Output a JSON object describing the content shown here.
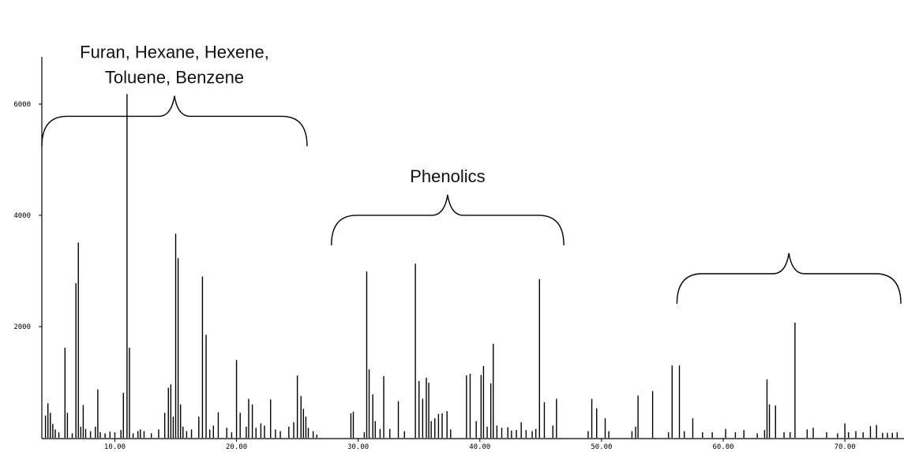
{
  "chart_data": {
    "type": "bar",
    "title": "",
    "xlabel": "",
    "ylabel": "",
    "xlim": [
      4.0,
      74.6
    ],
    "ylim": [
      0,
      6850
    ],
    "grid": false,
    "x_ticks": [
      {
        "value": 10,
        "label": "10.00"
      },
      {
        "value": 20,
        "label": "20.00"
      },
      {
        "value": 30,
        "label": "30.00"
      },
      {
        "value": 40,
        "label": "40.00"
      },
      {
        "value": 50,
        "label": "50.00"
      },
      {
        "value": 60,
        "label": "60.00"
      },
      {
        "value": 70,
        "label": "70.00"
      }
    ],
    "y_ticks": [
      {
        "value": 2000,
        "label": "2000"
      },
      {
        "value": 4000,
        "label": "4000"
      },
      {
        "value": 6000,
        "label": "6000"
      }
    ],
    "annotations": [
      {
        "lines": [
          "Furan, Hexane, Hexene,",
          "Toluene, Benzene"
        ],
        "x_range": [
          4.0,
          25.8
        ],
        "brace_y": 5780
      },
      {
        "lines": [
          "Phenolics"
        ],
        "x_range": [
          27.8,
          46.9
        ],
        "brace_y": 4000
      },
      {
        "lines": [
          ""
        ],
        "x_range": [
          56.2,
          74.6
        ],
        "brace_y": 2950
      }
    ],
    "series": [
      {
        "x": [
          4.3,
          4.5,
          4.7,
          4.9,
          5.1,
          5.4,
          5.9,
          6.1,
          6.5,
          6.8,
          7.0,
          7.2,
          7.4,
          7.6,
          8.0,
          8.4,
          8.6,
          8.8,
          9.2,
          9.6,
          10.0,
          10.5,
          10.7,
          11.0,
          11.2,
          11.5,
          11.9,
          12.1,
          12.4,
          13.0,
          13.6,
          14.1,
          14.4,
          14.6,
          14.8,
          15.0,
          15.2,
          15.4,
          15.6,
          15.9,
          16.3,
          16.9,
          17.2,
          17.5,
          17.8,
          18.1,
          18.5,
          19.2,
          19.6,
          20.0,
          20.3,
          20.8,
          21.0,
          21.3,
          21.6,
          22.0,
          22.3,
          22.8,
          23.2,
          23.6,
          24.3,
          24.7,
          25.0,
          25.3,
          25.5,
          25.7,
          25.9,
          26.3,
          26.6,
          29.4,
          29.6,
          30.5,
          30.7,
          30.9,
          31.2,
          31.4,
          31.8,
          32.1,
          32.6,
          33.3,
          33.8,
          34.7,
          35.0,
          35.3,
          35.6,
          35.8,
          36.0,
          36.3,
          36.6,
          36.9,
          37.3,
          37.6,
          38.9,
          39.2,
          39.7,
          40.1,
          40.3,
          40.6,
          40.9,
          41.1,
          41.4,
          41.8,
          42.3,
          42.6,
          43.0,
          43.4,
          43.8,
          44.3,
          44.6,
          44.9,
          45.3,
          46.0,
          46.3,
          48.9,
          49.2,
          49.6,
          50.3,
          50.6,
          52.5,
          52.8,
          53.0,
          54.2,
          55.5,
          55.8,
          56.4,
          56.8,
          57.5,
          58.3,
          59.1,
          60.2,
          61.0,
          61.7,
          62.8,
          63.4,
          63.6,
          63.8,
          64.3,
          65.0,
          65.5,
          65.9,
          66.9,
          67.4,
          68.5,
          69.4,
          70.0,
          70.3,
          70.9,
          71.5,
          72.1,
          72.6,
          73.1,
          73.5,
          73.9,
          74.3
        ],
        "values": [
          400,
          620,
          450,
          250,
          150,
          100,
          1620,
          450,
          80,
          2780,
          3510,
          200,
          590,
          160,
          120,
          200,
          870,
          100,
          80,
          110,
          100,
          140,
          810,
          6180,
          1620,
          80,
          120,
          150,
          120,
          80,
          150,
          450,
          900,
          960,
          380,
          3670,
          3230,
          600,
          200,
          120,
          150,
          380,
          2900,
          1850,
          150,
          220,
          460,
          180,
          100,
          1400,
          450,
          200,
          700,
          600,
          180,
          260,
          220,
          690,
          150,
          120,
          200,
          280,
          1120,
          750,
          520,
          380,
          180,
          120,
          60,
          440,
          470,
          100,
          2990,
          1230,
          780,
          300,
          160,
          1110,
          160,
          660,
          120,
          3130,
          1020,
          700,
          1080,
          990,
          300,
          350,
          430,
          440,
          480,
          150,
          1120,
          1150,
          300,
          1130,
          1290,
          200,
          980,
          1690,
          220,
          180,
          190,
          130,
          140,
          280,
          140,
          120,
          160,
          2850,
          640,
          220,
          700,
          120,
          700,
          530,
          350,
          120,
          120,
          200,
          760,
          840,
          100,
          1300,
          1300,
          120,
          350,
          100,
          100,
          160,
          100,
          140,
          80,
          140,
          1050,
          600,
          580,
          100,
          100,
          2070,
          150,
          180,
          100,
          80,
          260,
          100,
          120,
          100,
          210,
          230,
          90,
          90,
          90,
          100
        ]
      }
    ]
  }
}
